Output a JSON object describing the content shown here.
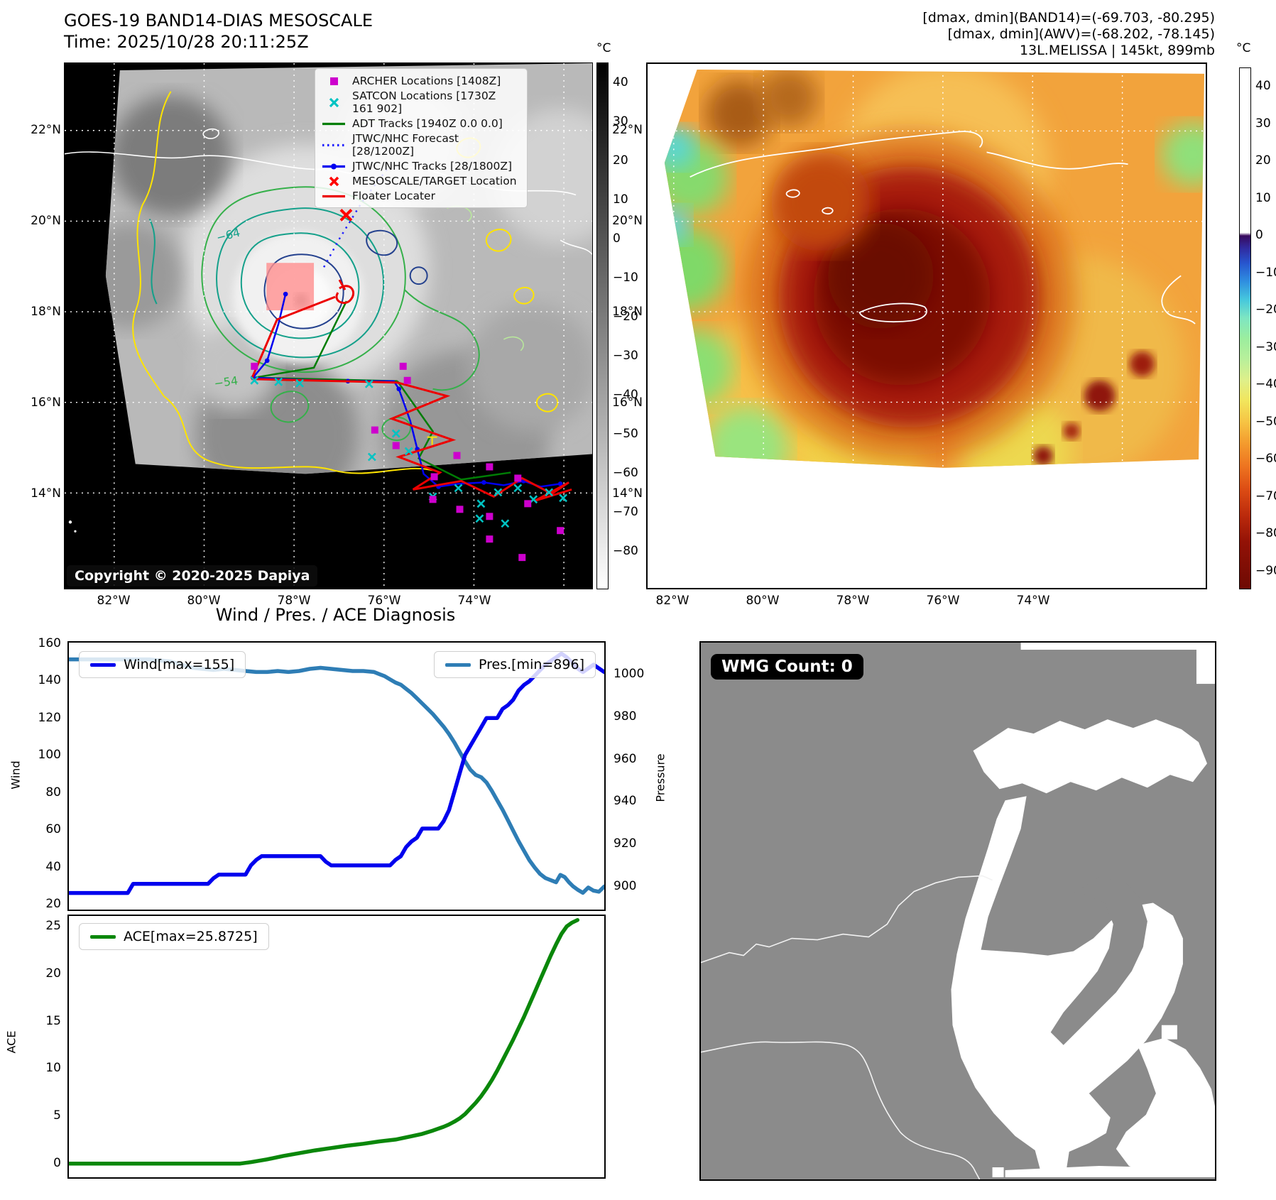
{
  "panel_goes": {
    "title": "GOES-19 BAND14-DIAS MESOSCALE",
    "time_line": "Time: 2025/10/28 20:11:25Z",
    "legend": {
      "archer": "ARCHER Locations [1408Z]",
      "satcon": "SATCON Locations [1730Z 161 902]",
      "adt": "ADT Tracks [1940Z 0.0 0.0]",
      "forecast": "JTWC/NHC Forecast [28/1200Z]",
      "tracks": "JTWC/NHC Tracks [28/1800Z]",
      "target": "MESOSCALE/TARGET Location",
      "floater": "Floater Locater"
    },
    "contour_label_64": "−64",
    "contour_label_54": "−54",
    "copyright": "Copyright © 2020-2025 Dapiya",
    "lat_ticks": [
      "22°N",
      "20°N",
      "18°N",
      "16°N",
      "14°N"
    ],
    "lon_ticks": [
      "82°W",
      "80°W",
      "78°W",
      "76°W",
      "74°W"
    ],
    "colorbar_unit": "°C",
    "colorbar_ticks": [
      "40",
      "30",
      "20",
      "10",
      "0",
      "−10",
      "−20",
      "−30",
      "−40",
      "−50",
      "−60",
      "−70",
      "−80"
    ]
  },
  "panel_awv": {
    "header_line1": "[dmax, dmin](BAND14)=(-69.703, -80.295)",
    "header_line2": "[dmax, dmin](AWV)=(-68.202, -78.145)",
    "header_line3": "13L.MELISSA | 145kt, 899mb",
    "lat_ticks": [
      "22°N",
      "20°N",
      "18°N",
      "16°N",
      "14°N"
    ],
    "lon_ticks": [
      "82°W",
      "80°W",
      "78°W",
      "76°W",
      "74°W"
    ],
    "colorbar_unit": "°C",
    "colorbar_ticks": [
      "40",
      "30",
      "20",
      "10",
      "0",
      "−10",
      "−20",
      "−30",
      "−40",
      "−50",
      "−60",
      "−70",
      "−80",
      "−90"
    ]
  },
  "diagnosis": {
    "section_title": "Wind / Pres. / ACE Diagnosis",
    "wind_legend": "Wind[max=155]",
    "pres_legend": "Pres.[min=896]",
    "ace_legend": "ACE[max=25.8725]",
    "wind_axis_label": "Wind",
    "pres_axis_label": "Pressure",
    "ace_axis_label": "ACE",
    "wind_ticks": [
      "160",
      "140",
      "120",
      "100",
      "80",
      "60",
      "40",
      "20"
    ],
    "pres_ticks": [
      "1000",
      "980",
      "960",
      "940",
      "920",
      "900"
    ],
    "ace_ticks": [
      "25",
      "20",
      "15",
      "10",
      "5",
      "0"
    ]
  },
  "panel_wmg": {
    "badge": "WMG Count: 0"
  },
  "chart_data": [
    {
      "type": "line",
      "title": "Wind / Pres. / ACE Diagnosis",
      "xlim": [
        0,
        100
      ],
      "grid": false,
      "legend_position": "top-left and top-right",
      "series": [
        {
          "name": "Wind[max=155]",
          "axis": "left",
          "ylabel": "Wind",
          "color": "#0000ee",
          "ylim": [
            16,
            161
          ],
          "yticks": [
            160,
            140,
            120,
            100,
            80,
            60,
            40,
            20
          ],
          "points": [
            [
              0,
              25
            ],
            [
              4,
              25
            ],
            [
              8,
              25
            ],
            [
              11,
              25
            ],
            [
              12,
              30
            ],
            [
              16,
              30
            ],
            [
              20,
              30
            ],
            [
              24,
              30
            ],
            [
              26,
              30
            ],
            [
              27,
              33
            ],
            [
              28,
              35
            ],
            [
              31,
              35
            ],
            [
              33,
              35
            ],
            [
              34,
              40
            ],
            [
              35,
              43
            ],
            [
              36,
              45
            ],
            [
              40,
              45
            ],
            [
              44,
              45
            ],
            [
              47,
              45
            ],
            [
              48,
              42
            ],
            [
              49,
              40
            ],
            [
              52,
              40
            ],
            [
              55,
              40
            ],
            [
              58,
              40
            ],
            [
              60,
              40
            ],
            [
              61,
              43
            ],
            [
              62,
              45
            ],
            [
              63,
              50
            ],
            [
              64,
              53
            ],
            [
              65,
              55
            ],
            [
              66,
              60
            ],
            [
              68,
              60
            ],
            [
              69,
              60
            ],
            [
              70,
              64
            ],
            [
              71,
              70
            ],
            [
              72,
              80
            ],
            [
              73,
              90
            ],
            [
              74,
              100
            ],
            [
              75,
              105
            ],
            [
              76,
              110
            ],
            [
              77,
              115
            ],
            [
              78,
              120
            ],
            [
              79,
              120
            ],
            [
              80,
              120
            ],
            [
              81,
              125
            ],
            [
              82,
              127
            ],
            [
              83,
              130
            ],
            [
              84,
              135
            ],
            [
              85,
              138
            ],
            [
              86,
              140
            ],
            [
              87,
              143
            ],
            [
              88,
              146
            ],
            [
              89,
              149
            ],
            [
              90,
              151
            ],
            [
              91,
              153
            ],
            [
              92,
              155
            ],
            [
              93,
              153
            ],
            [
              94,
              150
            ],
            [
              95,
              147
            ],
            [
              96,
              145
            ],
            [
              97,
              147
            ],
            [
              98,
              149
            ],
            [
              99,
              147
            ],
            [
              100,
              145
            ]
          ]
        },
        {
          "name": "Pres.[min=896]",
          "axis": "right",
          "ylabel": "Pressure",
          "color": "#2e7db5",
          "ylim": [
            888,
            1015
          ],
          "yticks": [
            1000,
            980,
            960,
            940,
            920,
            900
          ],
          "points": [
            [
              0,
              1007
            ],
            [
              4,
              1007
            ],
            [
              8,
              1007
            ],
            [
              12,
              1007
            ],
            [
              15,
              1007
            ],
            [
              17,
              1006.5
            ],
            [
              19,
              1006
            ],
            [
              21,
              1004.5
            ],
            [
              23,
              1003
            ],
            [
              25,
              1002.5
            ],
            [
              27,
              1002
            ],
            [
              29,
              1002.5
            ],
            [
              31,
              1002
            ],
            [
              33,
              1001.5
            ],
            [
              35,
              1001
            ],
            [
              37,
              1001
            ],
            [
              39,
              1001.5
            ],
            [
              41,
              1001
            ],
            [
              43,
              1001.5
            ],
            [
              45,
              1002.5
            ],
            [
              47,
              1003
            ],
            [
              49,
              1002.5
            ],
            [
              51,
              1002
            ],
            [
              53,
              1001.5
            ],
            [
              55,
              1001.5
            ],
            [
              57,
              1001
            ],
            [
              58,
              1000
            ],
            [
              59,
              999
            ],
            [
              60,
              997.5
            ],
            [
              61,
              996
            ],
            [
              62,
              995
            ],
            [
              63,
              993
            ],
            [
              64,
              991
            ],
            [
              65,
              988.5
            ],
            [
              66,
              986
            ],
            [
              67,
              983.5
            ],
            [
              68,
              981
            ],
            [
              69,
              978
            ],
            [
              70,
              975
            ],
            [
              71,
              971.5
            ],
            [
              72,
              967.5
            ],
            [
              73,
              963
            ],
            [
              74,
              958.5
            ],
            [
              75,
              954.5
            ],
            [
              76,
              952
            ],
            [
              77,
              951
            ],
            [
              78,
              948.5
            ],
            [
              79,
              944.5
            ],
            [
              80,
              940
            ],
            [
              81,
              935.5
            ],
            [
              82,
              930.5
            ],
            [
              83,
              925.5
            ],
            [
              84,
              920.5
            ],
            [
              85,
              916
            ],
            [
              86,
              911.5
            ],
            [
              87,
              908
            ],
            [
              88,
              905
            ],
            [
              89,
              903
            ],
            [
              90,
              902
            ],
            [
              91,
              901
            ],
            [
              91.8,
              904.5
            ],
            [
              92.6,
              903.5
            ],
            [
              93.4,
              901
            ],
            [
              94.2,
              899
            ],
            [
              95,
              897.5
            ],
            [
              96,
              896
            ],
            [
              97,
              898.5
            ],
            [
              98,
              897
            ],
            [
              99,
              896.5
            ],
            [
              100,
              899
            ]
          ]
        }
      ]
    },
    {
      "type": "line",
      "xlim": [
        0,
        100
      ],
      "grid": false,
      "legend_position": "top-left",
      "series": [
        {
          "name": "ACE[max=25.8725]",
          "axis": "left",
          "ylabel": "ACE",
          "color": "#0a870a",
          "ylim": [
            -1.4,
            26.3
          ],
          "yticks": [
            25,
            20,
            15,
            10,
            5,
            0
          ],
          "points": [
            [
              0,
              0.05
            ],
            [
              5,
              0.05
            ],
            [
              10,
              0.05
            ],
            [
              15,
              0.05
            ],
            [
              20,
              0.05
            ],
            [
              25,
              0.05
            ],
            [
              30,
              0.05
            ],
            [
              32,
              0.05
            ],
            [
              34,
              0.2
            ],
            [
              37,
              0.5
            ],
            [
              40,
              0.85
            ],
            [
              43,
              1.15
            ],
            [
              46,
              1.45
            ],
            [
              49,
              1.7
            ],
            [
              52,
              1.95
            ],
            [
              55,
              2.15
            ],
            [
              58,
              2.4
            ],
            [
              61,
              2.6
            ],
            [
              64,
              2.95
            ],
            [
              66,
              3.2
            ],
            [
              68,
              3.55
            ],
            [
              70,
              3.95
            ],
            [
              71,
              4.2
            ],
            [
              72,
              4.5
            ],
            [
              73,
              4.85
            ],
            [
              74,
              5.3
            ],
            [
              75,
              5.9
            ],
            [
              76,
              6.5
            ],
            [
              77,
              7.2
            ],
            [
              78,
              8.0
            ],
            [
              79,
              8.9
            ],
            [
              80,
              9.9
            ],
            [
              81,
              11.0
            ],
            [
              82,
              12.1
            ],
            [
              83,
              13.2
            ],
            [
              84,
              14.4
            ],
            [
              85,
              15.6
            ],
            [
              86,
              16.9
            ],
            [
              87,
              18.2
            ],
            [
              88,
              19.5
            ],
            [
              89,
              20.8
            ],
            [
              90,
              22.1
            ],
            [
              91,
              23.3
            ],
            [
              92,
              24.4
            ],
            [
              93,
              25.2
            ],
            [
              94,
              25.6
            ],
            [
              95,
              25.87
            ]
          ]
        }
      ]
    }
  ]
}
